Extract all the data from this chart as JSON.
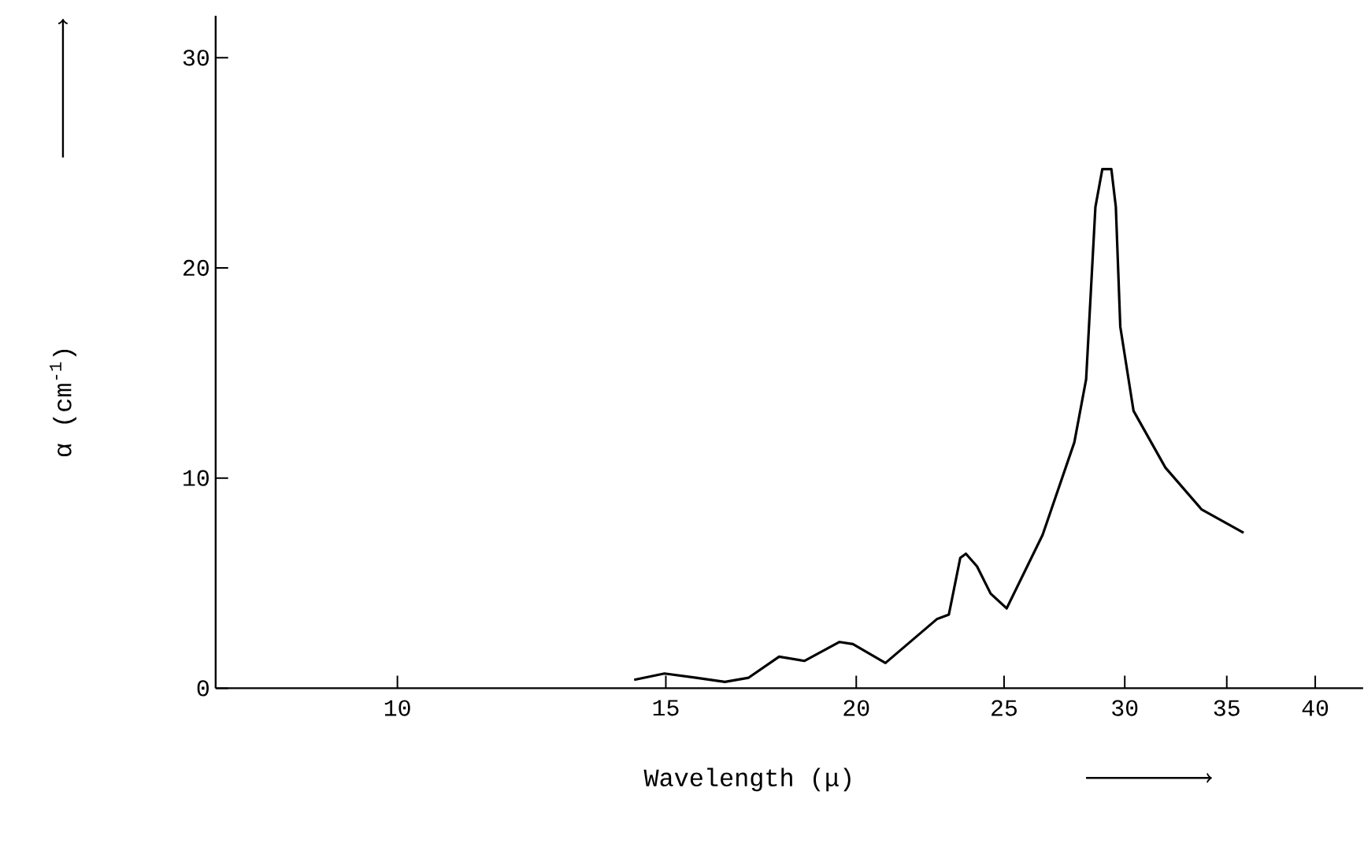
{
  "chart_data": {
    "type": "line",
    "xlabel": "Wavelength (μ)",
    "ylabel": "α (cm$^{-1}$)",
    "log": "x",
    "xlim": [
      7.6,
      43
    ],
    "ylim": [
      0,
      32
    ],
    "xticks": [
      10,
      15,
      20,
      25,
      30,
      35,
      40
    ],
    "yticks": [
      0,
      10,
      20,
      30
    ],
    "grid": false,
    "series": [
      {
        "color": "#000000",
        "x": [
          14.3,
          14.97,
          15.7,
          16.4,
          17.0,
          17.8,
          18.5,
          19.5,
          19.9,
          20.9,
          22.6,
          23.0,
          23.4,
          23.6,
          24.0,
          24.5,
          25.1,
          26.5,
          27.8,
          28.3,
          28.7,
          29.0,
          29.4,
          29.6,
          29.8,
          30.4,
          31.9,
          33.7,
          35.9
        ],
        "values": [
          0.4,
          0.7,
          0.5,
          0.3,
          0.5,
          1.5,
          1.3,
          2.2,
          2.1,
          1.2,
          3.3,
          3.5,
          6.2,
          6.4,
          5.8,
          4.5,
          3.8,
          7.3,
          11.7,
          14.7,
          22.9,
          24.7,
          24.7,
          22.9,
          17.2,
          13.2,
          10.5,
          8.5,
          7.4
        ]
      }
    ]
  }
}
